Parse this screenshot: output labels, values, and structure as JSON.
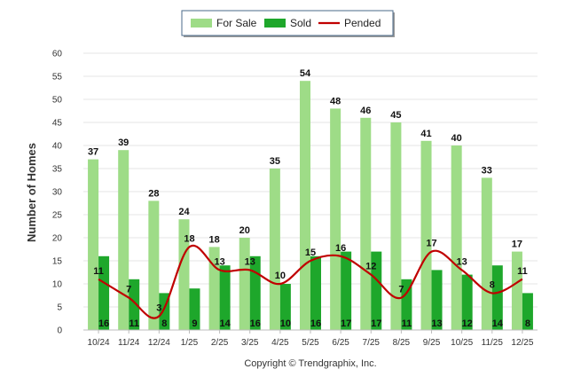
{
  "chart_data": {
    "type": "bar",
    "categories": [
      "10/24",
      "11/24",
      "12/24",
      "1/25",
      "2/25",
      "3/25",
      "4/25",
      "5/25",
      "6/25",
      "7/25",
      "8/25",
      "9/25",
      "10/25",
      "11/25",
      "12/25"
    ],
    "series": [
      {
        "name": "For Sale",
        "type": "bar",
        "color": "#9edc87",
        "values": [
          37,
          39,
          28,
          24,
          18,
          20,
          35,
          54,
          48,
          46,
          45,
          41,
          40,
          33,
          17
        ]
      },
      {
        "name": "Sold",
        "type": "bar",
        "color": "#1ea72b",
        "values": [
          16,
          11,
          8,
          9,
          14,
          16,
          10,
          16,
          17,
          17,
          11,
          13,
          12,
          14,
          8
        ]
      },
      {
        "name": "Pended",
        "type": "line",
        "smooth": true,
        "color": "#c00000",
        "values": [
          11,
          7,
          3,
          18,
          13,
          13,
          10,
          15,
          16,
          12,
          7,
          17,
          13,
          8,
          11
        ]
      }
    ],
    "ylabel": "Number of Homes",
    "ylim": [
      0,
      60
    ],
    "yticks": [
      0,
      5,
      10,
      15,
      20,
      25,
      30,
      35,
      40,
      45,
      50,
      55,
      60
    ],
    "grid": true,
    "legend_position": "top-center",
    "footer": "Copyright © Trendgraphix, Inc."
  }
}
